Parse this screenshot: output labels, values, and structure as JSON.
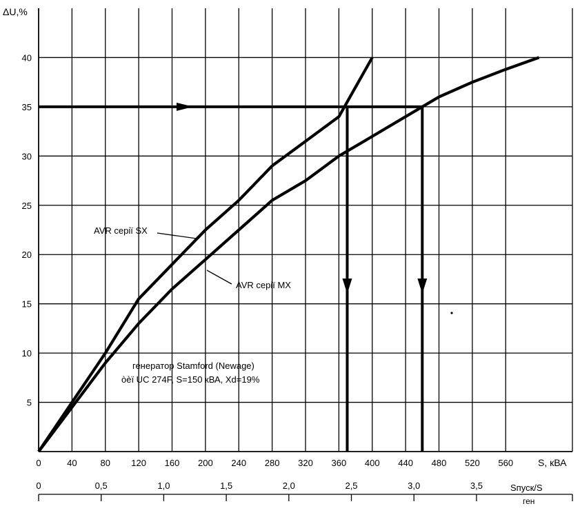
{
  "chart_data": {
    "type": "line",
    "ylabel": "ΔU,%",
    "xlabel": "S, кВА",
    "ylim": [
      0,
      45
    ],
    "xlim": [
      0,
      640
    ],
    "y_ticks": [
      5,
      10,
      15,
      20,
      25,
      30,
      35,
      40
    ],
    "x_ticks": [
      0,
      40,
      80,
      120,
      160,
      200,
      240,
      280,
      320,
      360,
      400,
      440,
      480,
      520,
      560
    ],
    "grid": true,
    "series": [
      {
        "name": "AVR серії SX",
        "x": [
          0,
          40,
          80,
          120,
          160,
          200,
          240,
          280,
          320,
          360,
          400
        ],
        "y": [
          0,
          5,
          10,
          15.5,
          19,
          22.5,
          25.5,
          29,
          31.5,
          34,
          40
        ]
      },
      {
        "name": "AVR серії MX",
        "x": [
          0,
          40,
          80,
          120,
          160,
          200,
          240,
          280,
          320,
          360,
          400,
          440,
          480,
          520,
          560,
          600
        ],
        "y": [
          0,
          4.5,
          9,
          13,
          16.5,
          19.5,
          22.5,
          25.5,
          27.5,
          30,
          32,
          34,
          36,
          37.5,
          38.8,
          40
        ]
      }
    ],
    "annotations": {
      "reference_level": 35,
      "intersections": [
        {
          "series": "AVR серії SX",
          "x": 370,
          "y": 35
        },
        {
          "series": "AVR серії MX",
          "x": 460,
          "y": 35
        }
      ],
      "note_line1": "генератор Stamford (Newage)",
      "note_line2": "òèï UC 274F, S=150 кВА, Xd=19%"
    },
    "secondary_axis": {
      "label": "Sпуск/S",
      "label_sub": "ген",
      "ticks": [
        "0",
        "0,5",
        "1,0",
        "1,5",
        "2,0",
        "2,5",
        "3,0",
        "3,5"
      ],
      "tick_values": [
        0,
        0.5,
        1.0,
        1.5,
        2.0,
        2.5,
        3.0,
        3.5
      ],
      "s_per_unit": 150
    }
  },
  "legend_labels": {
    "sx": "AVR серії SX",
    "mx": "AVR серії MX"
  }
}
